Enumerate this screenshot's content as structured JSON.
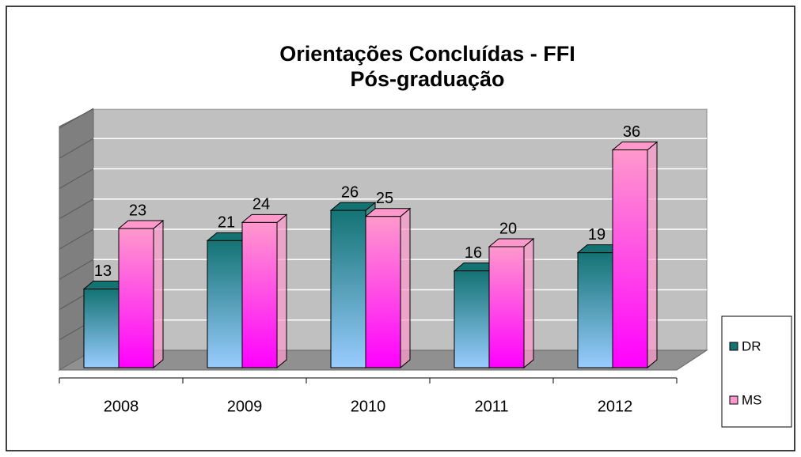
{
  "chart_data": {
    "type": "bar3d",
    "title": [
      "Orientações Concluídas - FFI",
      "Pós-graduação"
    ],
    "categories": [
      "2008",
      "2009",
      "2010",
      "2011",
      "2012"
    ],
    "series": [
      {
        "name": "DR",
        "color": "#137373",
        "values": [
          13,
          21,
          26,
          16,
          19
        ]
      },
      {
        "name": "MS",
        "color": "#ff99cc",
        "values": [
          23,
          24,
          25,
          20,
          36
        ]
      }
    ],
    "ylim": [
      0,
      40
    ],
    "yticks": [
      0,
      5,
      10,
      15,
      20,
      25,
      30,
      35,
      40
    ],
    "grid": true,
    "legend": "right"
  }
}
